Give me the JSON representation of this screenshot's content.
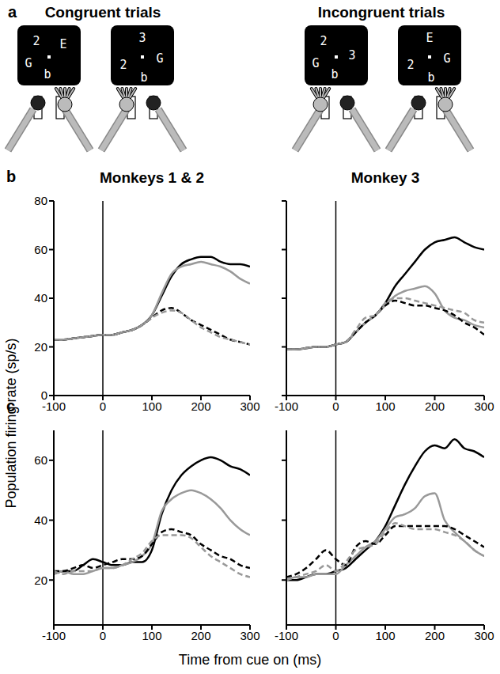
{
  "figure": {
    "ylabel": "Population firing rate (sp/s)",
    "xlabel": "Time from cue on (ms)"
  },
  "panel_a": {
    "label": "a",
    "groups": [
      {
        "title": "Congruent trials",
        "screens": [
          [
            "2",
            "E",
            "G",
            "b"
          ],
          [
            "3",
            "G",
            "2",
            "b"
          ]
        ]
      },
      {
        "title": "Incongruent trials",
        "screens": [
          [
            "2",
            "3",
            "G",
            "b"
          ],
          [
            "E",
            "G",
            "2",
            "b"
          ]
        ]
      }
    ]
  },
  "chart_data": [
    {
      "type": "line",
      "panel_label": "b",
      "title": "Monkeys 1 & 2",
      "x": [
        -100,
        -80,
        -60,
        -40,
        -20,
        0,
        20,
        40,
        60,
        80,
        100,
        120,
        140,
        160,
        180,
        200,
        220,
        240,
        260,
        280,
        300
      ],
      "xlim": [
        -100,
        300
      ],
      "xticks": [
        -100,
        0,
        100,
        200,
        300
      ],
      "ylim": [
        0,
        80
      ],
      "yticks": [
        0,
        20,
        40,
        60,
        80
      ],
      "tick_labels": true,
      "vlines": [
        0
      ],
      "series": [
        {
          "color": "#000000",
          "line_style": "solid",
          "values": [
            23,
            23,
            23.5,
            24,
            24.5,
            25,
            25,
            26,
            27,
            29,
            33,
            41,
            49,
            54,
            56,
            57,
            57,
            55,
            54,
            54,
            53
          ]
        },
        {
          "color": "#999999",
          "line_style": "solid",
          "values": [
            23,
            23,
            23.5,
            24,
            24.5,
            25,
            25,
            26,
            27,
            29,
            33,
            42,
            50,
            53,
            54,
            55,
            54,
            53,
            51,
            48,
            46
          ]
        },
        {
          "color": "#000000",
          "line_style": "dashed",
          "values": [
            23,
            23,
            23.5,
            24,
            24.5,
            25,
            25,
            26,
            27,
            29,
            32,
            35,
            36,
            34,
            31,
            29,
            27,
            25,
            23,
            22,
            21
          ]
        },
        {
          "color": "#999999",
          "line_style": "dashed",
          "values": [
            23,
            23,
            23.5,
            24,
            24.5,
            25,
            25,
            26,
            27,
            29,
            32,
            34,
            35,
            34,
            31,
            28,
            26,
            24,
            23,
            22,
            21
          ]
        }
      ]
    },
    {
      "type": "line",
      "title": "Monkey 3",
      "x": [
        -100,
        -80,
        -60,
        -40,
        -20,
        0,
        20,
        40,
        60,
        80,
        100,
        120,
        140,
        160,
        180,
        200,
        220,
        240,
        260,
        280,
        300
      ],
      "xlim": [
        -100,
        300
      ],
      "xticks": [
        -100,
        0,
        100,
        200,
        300
      ],
      "ylim": [
        0,
        80
      ],
      "yticks": [
        0,
        20,
        40,
        60,
        80
      ],
      "tick_labels": "x",
      "vlines": [
        0
      ],
      "series": [
        {
          "color": "#000000",
          "line_style": "solid",
          "values": [
            19,
            19,
            19.5,
            20,
            20,
            21,
            22,
            26,
            30,
            33,
            38,
            45,
            50,
            55,
            60,
            63,
            64,
            65,
            63,
            61,
            60
          ]
        },
        {
          "color": "#999999",
          "line_style": "solid",
          "values": [
            19,
            19,
            19.5,
            20,
            20,
            21,
            22,
            26,
            30,
            33,
            37,
            41,
            43,
            44,
            45,
            42,
            35,
            32,
            31,
            29,
            28
          ]
        },
        {
          "color": "#000000",
          "line_style": "dashed",
          "values": [
            19,
            19,
            19.5,
            20,
            20,
            21,
            22,
            26,
            30,
            33,
            37,
            39,
            38,
            37,
            37,
            36,
            35,
            33,
            30,
            28,
            25
          ]
        },
        {
          "color": "#999999",
          "line_style": "dashed",
          "values": [
            19,
            19,
            19.5,
            20,
            20,
            21,
            22,
            27,
            32,
            33,
            38,
            40,
            40,
            39,
            38,
            37,
            36,
            35,
            34,
            31,
            30
          ]
        }
      ]
    },
    {
      "type": "line",
      "panel_label": "c",
      "x": [
        -100,
        -80,
        -60,
        -40,
        -20,
        0,
        20,
        40,
        60,
        80,
        100,
        120,
        140,
        160,
        180,
        200,
        220,
        240,
        260,
        280,
        300
      ],
      "xlim": [
        -100,
        300
      ],
      "xticks": [
        -100,
        0,
        100,
        200,
        300
      ],
      "ylim": [
        5,
        70
      ],
      "yticks": [
        20,
        40,
        60
      ],
      "tick_labels": true,
      "vlines": [
        0
      ],
      "series": [
        {
          "color": "#000000",
          "line_style": "solid",
          "values": [
            22,
            23,
            23,
            25,
            27,
            26,
            25,
            25,
            26,
            26,
            30,
            42,
            50,
            55,
            58,
            60,
            61,
            60,
            58,
            57,
            55
          ]
        },
        {
          "color": "#999999",
          "line_style": "solid",
          "values": [
            22,
            23,
            22,
            22,
            23,
            24,
            24,
            25,
            26,
            28,
            32,
            43,
            47,
            49,
            50,
            49,
            47,
            44,
            40,
            37,
            35
          ]
        },
        {
          "color": "#000000",
          "line_style": "dashed",
          "values": [
            23,
            23,
            24,
            25,
            24,
            25,
            26,
            27,
            27,
            28,
            32,
            36,
            37,
            36,
            35,
            32,
            30,
            28,
            27,
            25,
            24
          ]
        },
        {
          "color": "#999999",
          "line_style": "dashed",
          "values": [
            23,
            22,
            23,
            23,
            23,
            24,
            24,
            25,
            27,
            29,
            33,
            35,
            35,
            35,
            34,
            31,
            28,
            26,
            24,
            22,
            21
          ]
        }
      ]
    },
    {
      "type": "line",
      "x": [
        -100,
        -80,
        -60,
        -40,
        -20,
        0,
        20,
        40,
        60,
        80,
        100,
        120,
        140,
        160,
        180,
        200,
        220,
        240,
        260,
        280,
        300
      ],
      "xlim": [
        -100,
        300
      ],
      "xticks": [
        -100,
        0,
        100,
        200,
        300
      ],
      "ylim": [
        5,
        70
      ],
      "yticks": [
        20,
        40,
        60
      ],
      "tick_labels": "x",
      "vlines": [
        0
      ],
      "series": [
        {
          "color": "#000000",
          "line_style": "solid",
          "values": [
            20,
            20,
            21,
            22,
            22,
            23,
            24,
            27,
            30,
            33,
            38,
            45,
            52,
            58,
            63,
            65,
            64,
            67,
            64,
            63,
            61
          ]
        },
        {
          "color": "#999999",
          "line_style": "solid",
          "values": [
            20,
            21,
            21,
            22,
            22,
            22,
            25,
            28,
            31,
            33,
            37,
            41,
            42,
            44,
            48,
            49,
            40,
            36,
            33,
            30,
            28
          ]
        },
        {
          "color": "#000000",
          "line_style": "dashed",
          "values": [
            21,
            22,
            24,
            27,
            30,
            27,
            25,
            31,
            33,
            32,
            35,
            38,
            38,
            38,
            38,
            38,
            38,
            37,
            35,
            33,
            31
          ]
        },
        {
          "color": "#999999",
          "line_style": "dashed",
          "values": [
            20,
            21,
            22,
            23,
            25,
            23,
            26,
            30,
            31,
            32,
            36,
            39,
            38,
            37,
            37,
            37,
            36,
            35,
            33,
            30,
            28
          ]
        }
      ]
    }
  ]
}
